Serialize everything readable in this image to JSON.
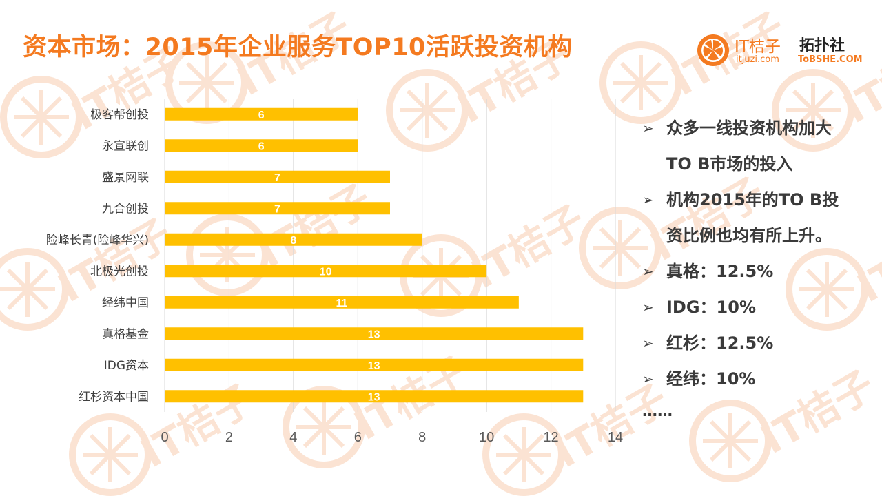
{
  "title": "资本市场：2015年企业服务TOP10活跃投资机构",
  "logo": {
    "brand1": "IT桔子",
    "brand1_sub": "itjuzi.com",
    "brand2": "拓扑社",
    "brand2_sub": "ToBSHE.COM",
    "watermark": "IT桔子"
  },
  "colors": {
    "accent": "#f47a20",
    "bar": "#ffc000",
    "grid": "#d9d9d9"
  },
  "chart_data": {
    "type": "bar",
    "orientation": "horizontal",
    "categories": [
      "极客帮创投",
      "永宣联创",
      "盛景网联",
      "九合创投",
      "险峰长青(险峰华兴)",
      "北极光创投",
      "经纬中国",
      "真格基金",
      "IDG资本",
      "红杉资本中国"
    ],
    "values": [
      6,
      6,
      7,
      7,
      8,
      10,
      11,
      13,
      13,
      13
    ],
    "xlim": [
      0,
      14
    ],
    "xticks": [
      "0",
      "2",
      "4",
      "6",
      "8",
      "10",
      "12",
      "14"
    ],
    "grid": true,
    "data_labels": true
  },
  "bullets": [
    {
      "lines": [
        "众多一线投资机构加大",
        "TO B市场的投入"
      ]
    },
    {
      "lines": [
        "机构2015年的TO B投",
        "资比例也均有所上升。"
      ]
    },
    {
      "lines": [
        "真格：12.5%"
      ]
    },
    {
      "lines": [
        "IDG：10%"
      ]
    },
    {
      "lines": [
        "红杉：12.5%"
      ]
    },
    {
      "lines": [
        "经纬：10%"
      ]
    }
  ],
  "ellipsis": "……"
}
